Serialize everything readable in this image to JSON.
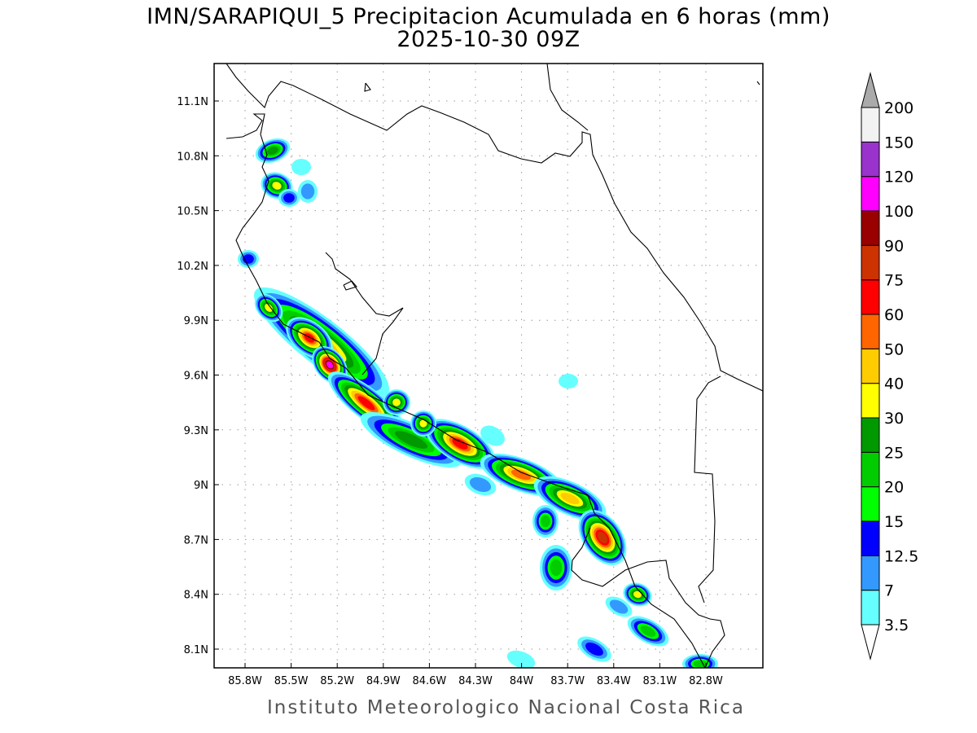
{
  "title": "IMN/SARAPIQUI_5 Precipitacion Acumulada en 6 horas (mm)",
  "subtitle": "2025-10-30 09Z",
  "footer": "Instituto Meteorologico Nacional Costa Rica",
  "map": {
    "lon_labels": [
      "85.8W",
      "85.5W",
      "85.2W",
      "84.9W",
      "84.6W",
      "84.3W",
      "84W",
      "83.7W",
      "83.4W",
      "83.1W",
      "82.8W"
    ],
    "lat_labels": [
      "11.1N",
      "10.8N",
      "10.5N",
      "10.2N",
      "9.9N",
      "9.6N",
      "9.3N",
      "9N",
      "8.7N",
      "8.4N",
      "8.1N"
    ]
  },
  "colorbar": {
    "levels": [
      "3.5",
      "7",
      "12.5",
      "15",
      "20",
      "25",
      "30",
      "40",
      "50",
      "60",
      "75",
      "90",
      "100",
      "120",
      "150",
      "200"
    ],
    "colors": [
      "#66ffff",
      "#3399ff",
      "#0000ff",
      "#00ff00",
      "#00cc00",
      "#009900",
      "#ffff00",
      "#ffcc00",
      "#ff6600",
      "#ff0000",
      "#cc3300",
      "#990000",
      "#ff00ff",
      "#9933cc",
      "#f2f2f2"
    ],
    "over_color": "#aaaaaa",
    "under_color": "#ffffff"
  }
}
